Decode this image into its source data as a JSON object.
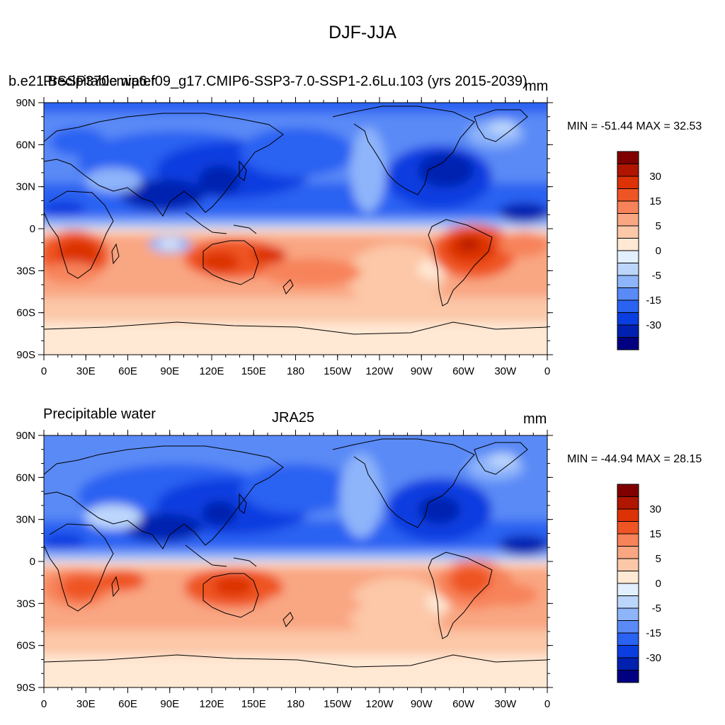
{
  "figure": {
    "title": "DJF-JJA"
  },
  "colors": [
    "#000080",
    "#0020b0",
    "#0a3ee0",
    "#2a62f2",
    "#5a8af6",
    "#8eb4fa",
    "#bcd6fb",
    "#e2efff",
    "#ffe8d4",
    "#fcc8a8",
    "#f9a682",
    "#f7835a",
    "#ef5424",
    "#dc3206",
    "#b01500",
    "#800000"
  ],
  "colorbar": {
    "labels": [
      "30",
      "15",
      "5",
      "0",
      "-5",
      "-15",
      "-30"
    ]
  },
  "axes": {
    "lon_labels": [
      "0",
      "30E",
      "60E",
      "90E",
      "120E",
      "150E",
      "180",
      "150W",
      "120W",
      "90W",
      "60W",
      "30W",
      "0"
    ],
    "lat_labels": [
      "90N",
      "60N",
      "30N",
      "0",
      "30S",
      "60S",
      "90S"
    ]
  },
  "panels": [
    {
      "left_title": "Precipitable water",
      "center_title": "b.e21.BSSP370cmip6.f09_g17.CMIP6-SSP3-7.0-SSP1-2.6Lu.103 (yrs 2015-2039)",
      "unit": "mm",
      "stats": "MIN = -51.44 MAX =  32.53",
      "min": -51.44,
      "max": 32.53
    },
    {
      "left_title": "Precipitable water",
      "center_title": "JRA25",
      "unit": "mm",
      "stats": "MIN = -44.94 MAX =  28.15",
      "min": -44.94,
      "max": 28.15
    }
  ]
}
